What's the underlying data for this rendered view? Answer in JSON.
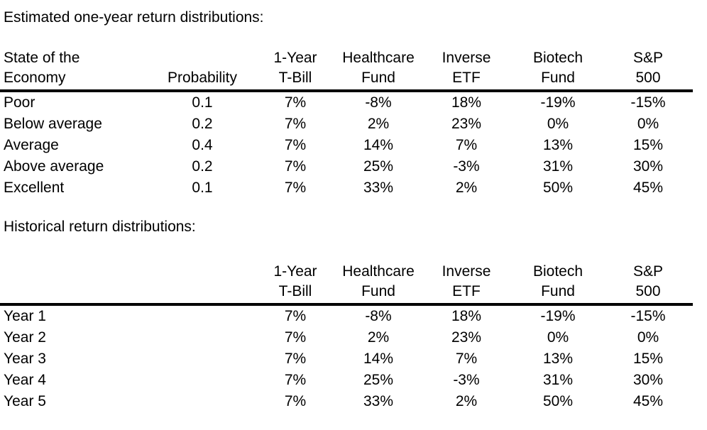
{
  "page": {
    "background_color": "#ffffff",
    "text_color": "#000000",
    "rule_color": "#000000"
  },
  "estimated_section": {
    "title": "Estimated one-year return distributions:",
    "table": {
      "headers": [
        {
          "line1": "State of the",
          "line2": "Economy"
        },
        {
          "line1": "",
          "line2": "Probability"
        },
        {
          "line1": "1-Year",
          "line2": "T-Bill"
        },
        {
          "line1": "Healthcare",
          "line2": "Fund"
        },
        {
          "line1": "Inverse",
          "line2": "ETF"
        },
        {
          "line1": "Biotech",
          "line2": "Fund"
        },
        {
          "line1": "S&P",
          "line2": "500"
        }
      ],
      "rows": [
        {
          "label": "Poor",
          "values": [
            "0.1",
            "7%",
            "-8%",
            "18%",
            "-19%",
            "-15%"
          ]
        },
        {
          "label": "Below average",
          "values": [
            "0.2",
            "7%",
            "2%",
            "23%",
            "0%",
            "0%"
          ]
        },
        {
          "label": "Average",
          "values": [
            "0.4",
            "7%",
            "14%",
            "7%",
            "13%",
            "15%"
          ]
        },
        {
          "label": "Above average",
          "values": [
            "0.2",
            "7%",
            "25%",
            "-3%",
            "31%",
            "30%"
          ]
        },
        {
          "label": "Excellent",
          "values": [
            "0.1",
            "7%",
            "33%",
            "2%",
            "50%",
            "45%"
          ]
        }
      ]
    }
  },
  "historical_section": {
    "title": "Historical return distributions:",
    "table": {
      "headers": [
        {
          "line1": "",
          "line2": ""
        },
        {
          "line1": "",
          "line2": ""
        },
        {
          "line1": "1-Year",
          "line2": "T-Bill"
        },
        {
          "line1": "Healthcare",
          "line2": "Fund"
        },
        {
          "line1": "Inverse",
          "line2": "ETF"
        },
        {
          "line1": "Biotech",
          "line2": "Fund"
        },
        {
          "line1": "S&P",
          "line2": "500"
        }
      ],
      "rows": [
        {
          "label": "Year 1",
          "values": [
            "",
            "7%",
            "-8%",
            "18%",
            "-19%",
            "-15%"
          ]
        },
        {
          "label": "Year 2",
          "values": [
            "",
            "7%",
            "2%",
            "23%",
            "0%",
            "0%"
          ]
        },
        {
          "label": "Year 3",
          "values": [
            "",
            "7%",
            "14%",
            "7%",
            "13%",
            "15%"
          ]
        },
        {
          "label": "Year 4",
          "values": [
            "",
            "7%",
            "25%",
            "-3%",
            "31%",
            "30%"
          ]
        },
        {
          "label": "Year 5",
          "values": [
            "",
            "7%",
            "33%",
            "2%",
            "50%",
            "45%"
          ]
        }
      ]
    }
  }
}
